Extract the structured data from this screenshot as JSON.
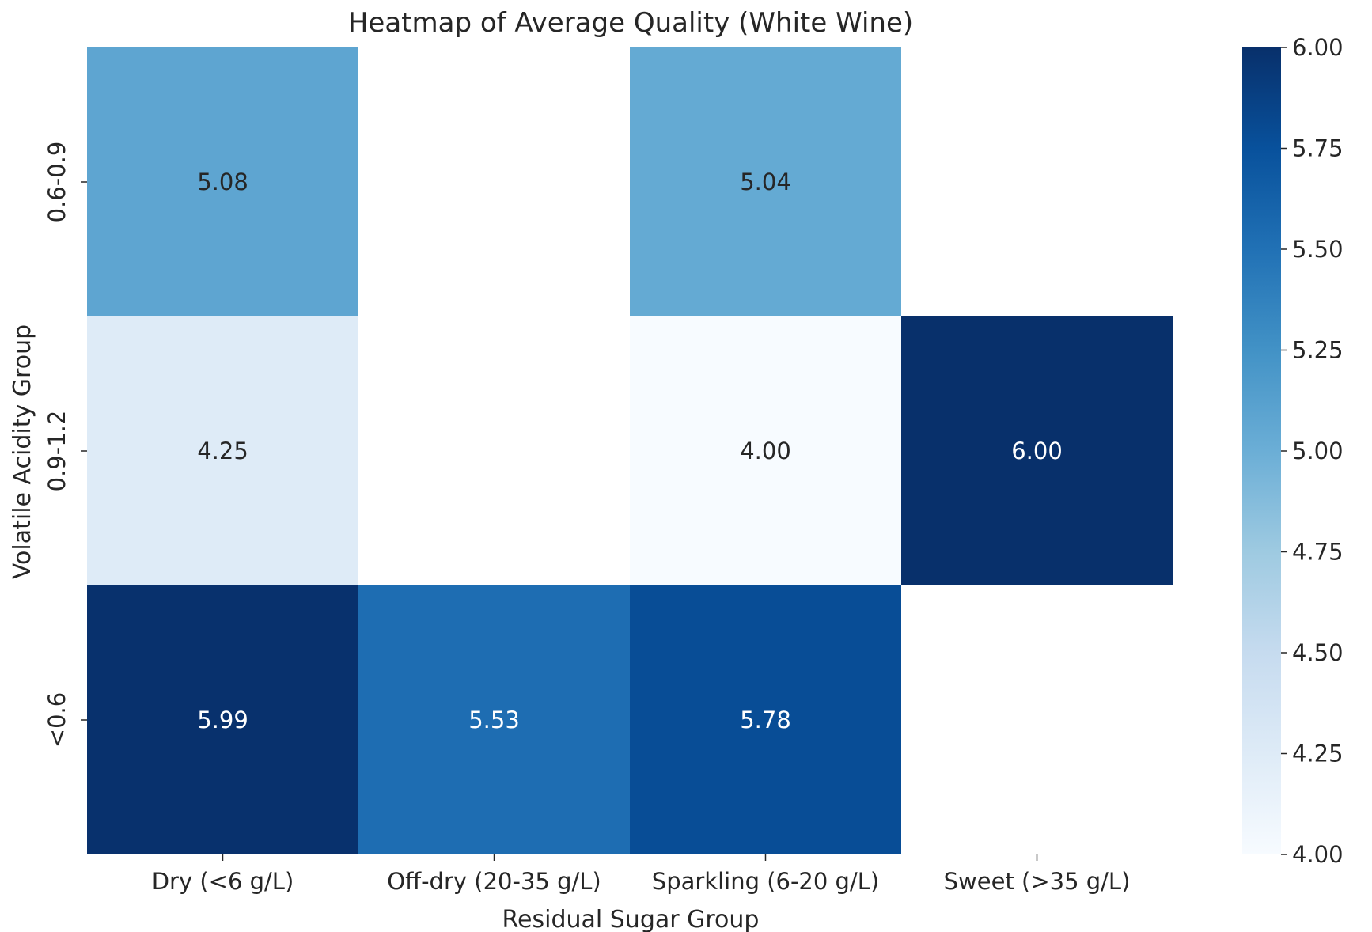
{
  "chart_data": {
    "type": "heatmap",
    "title": "Heatmap of Average Quality (White Wine)",
    "xlabel": "Residual Sugar Group",
    "ylabel": "Volatile Acidity Group",
    "x_categories": [
      "Dry (<6 g/L)",
      "Off-dry (20-35 g/L)",
      "Sparkling (6-20 g/L)",
      "Sweet (>35 g/L)"
    ],
    "y_categories": [
      "0.6-0.9",
      "0.9-1.2",
      "<0.6"
    ],
    "values": [
      [
        5.08,
        null,
        5.04,
        null
      ],
      [
        4.25,
        null,
        4.0,
        6.0
      ],
      [
        5.99,
        5.53,
        5.78,
        null
      ]
    ],
    "value_labels": [
      [
        "5.08",
        "",
        "5.04",
        ""
      ],
      [
        "4.25",
        "",
        "4.00",
        "6.00"
      ],
      [
        "5.99",
        "5.53",
        "5.78",
        ""
      ]
    ],
    "colorbar": {
      "range": [
        4.0,
        6.0
      ],
      "ticks": [
        "4.00",
        "4.25",
        "4.50",
        "4.75",
        "5.00",
        "5.25",
        "5.50",
        "5.75",
        "6.00"
      ],
      "colormap": "Blues"
    }
  }
}
